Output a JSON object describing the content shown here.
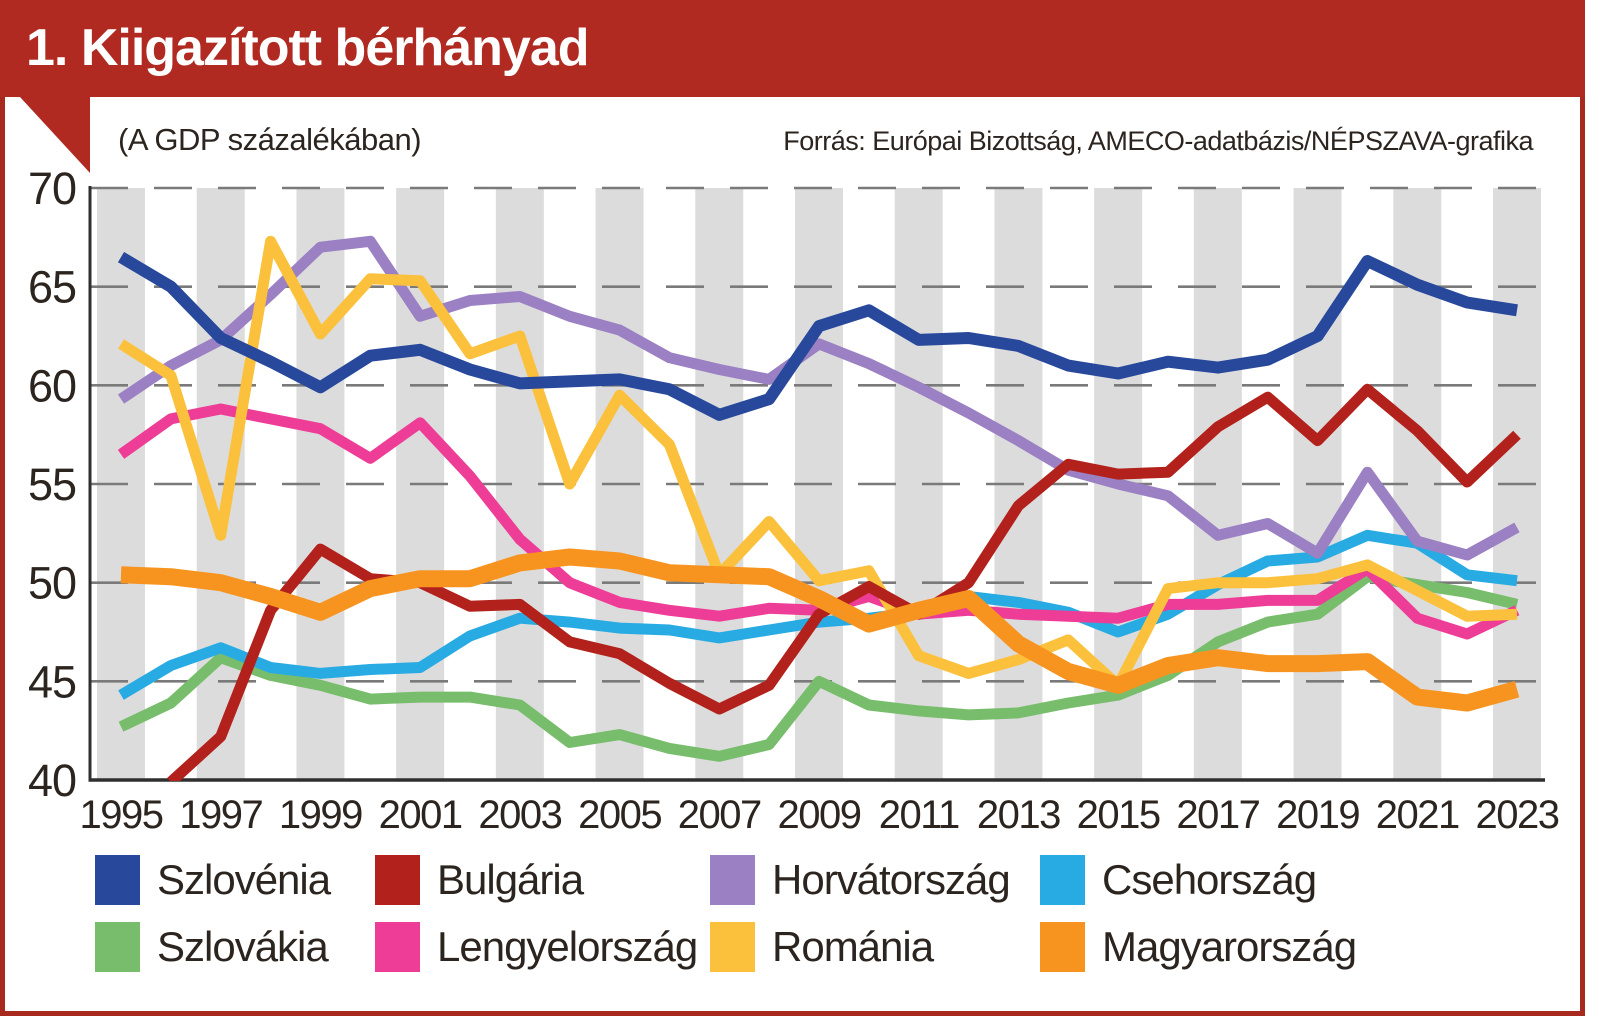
{
  "header": {
    "title": "1. Kiigazított bérhányad",
    "subtitle": "(A GDP százalékában)",
    "source": "Forrás: Európai Bizottság, AMECO-adatbázis/NÉPSZAVA-grafika"
  },
  "colors": {
    "banner": "#b02a21",
    "border": "#a8291d",
    "band": "#dcdcdc",
    "gridline": "#7a7a7a",
    "axis": "#2f2f2f",
    "text": "#2b241f"
  },
  "chart_data": {
    "type": "line",
    "title": "1. Kiigazított bérhányad",
    "subtitle": "(A GDP százalékában)",
    "source": "Forrás: Európai Bizottság, AMECO-adatbázis/NÉPSZAVA-grafika",
    "xlabel": "",
    "ylabel": "",
    "ylim": [
      40,
      70
    ],
    "ytick_step": 5,
    "yticks": [
      70,
      65,
      60,
      55,
      50,
      45,
      40
    ],
    "grid": "horizontal-dashed",
    "background_bands": "gray vertical bands centered on odd years",
    "legend_position": "bottom",
    "x": [
      1995,
      1996,
      1997,
      1998,
      1999,
      2000,
      2001,
      2002,
      2003,
      2004,
      2005,
      2006,
      2007,
      2008,
      2009,
      2010,
      2011,
      2012,
      2013,
      2014,
      2015,
      2016,
      2017,
      2018,
      2019,
      2020,
      2021,
      2022,
      2023
    ],
    "xtick_labels": [
      "1995",
      "1997",
      "1999",
      "2001",
      "2003",
      "2005",
      "2007",
      "2009",
      "2011",
      "2013",
      "2015",
      "2017",
      "2019",
      "2021",
      "2023"
    ],
    "series": [
      {
        "name": "Szlovénia",
        "color": "#28489c",
        "stroke_width": 12,
        "z": 7,
        "values": [
          66.5,
          65.0,
          62.4,
          61.2,
          59.9,
          61.5,
          61.8,
          60.8,
          60.1,
          60.2,
          60.3,
          59.8,
          58.5,
          59.3,
          63.0,
          63.8,
          62.3,
          62.4,
          62.0,
          61.0,
          60.6,
          61.2,
          60.9,
          61.3,
          62.5,
          66.3,
          65.1,
          64.2,
          63.8
        ]
      },
      {
        "name": "Bulgária",
        "color": "#b2211b",
        "stroke_width": 11,
        "z": 6,
        "values": [
          null,
          39.9,
          42.2,
          48.6,
          51.7,
          50.2,
          50.0,
          48.8,
          48.9,
          47.0,
          46.4,
          44.9,
          43.6,
          44.8,
          48.4,
          49.8,
          48.4,
          50.0,
          53.9,
          56.0,
          55.5,
          55.6,
          57.9,
          59.4,
          57.2,
          59.8,
          57.7,
          55.1,
          57.5
        ]
      },
      {
        "name": "Horvátország",
        "color": "#9b80c3",
        "stroke_width": 11,
        "z": 4,
        "values": [
          59.3,
          61.0,
          62.3,
          64.6,
          67.0,
          67.3,
          63.5,
          64.3,
          64.5,
          63.5,
          62.8,
          61.4,
          60.8,
          60.3,
          62.1,
          61.1,
          59.9,
          58.6,
          57.2,
          55.7,
          55.0,
          54.4,
          52.4,
          53.0,
          51.5,
          55.6,
          52.1,
          51.4,
          52.8
        ]
      },
      {
        "name": "Csehország",
        "color": "#28aae2",
        "stroke_width": 11,
        "z": 2,
        "values": [
          44.3,
          45.8,
          46.7,
          45.7,
          45.4,
          45.6,
          45.7,
          47.3,
          48.2,
          48.0,
          47.7,
          47.6,
          47.2,
          47.6,
          48.0,
          48.2,
          48.5,
          49.3,
          49.0,
          48.5,
          47.5,
          48.4,
          49.9,
          51.1,
          51.3,
          52.4,
          52.0,
          50.4,
          50.1
        ]
      },
      {
        "name": "Szlovákia",
        "color": "#78bd6b",
        "stroke_width": 11,
        "z": 1,
        "values": [
          42.7,
          43.9,
          46.2,
          45.3,
          44.8,
          44.1,
          44.2,
          44.2,
          43.8,
          41.9,
          42.3,
          41.6,
          41.2,
          41.8,
          45.0,
          43.8,
          43.5,
          43.3,
          43.4,
          43.9,
          44.3,
          45.3,
          47.0,
          48.0,
          48.4,
          50.3,
          49.9,
          49.5,
          48.9
        ]
      },
      {
        "name": "Lengyelország",
        "color": "#ee3d96",
        "stroke_width": 11,
        "z": 3,
        "values": [
          56.5,
          58.3,
          58.8,
          58.3,
          57.8,
          56.3,
          58.1,
          55.4,
          52.2,
          50.0,
          49.0,
          48.6,
          48.3,
          48.7,
          48.6,
          49.3,
          48.4,
          48.6,
          48.4,
          48.3,
          48.2,
          48.9,
          48.9,
          49.1,
          49.1,
          50.7,
          48.2,
          47.4,
          48.6
        ]
      },
      {
        "name": "Románia",
        "color": "#fcc13c",
        "stroke_width": 11,
        "z": 5,
        "values": [
          62.1,
          60.5,
          52.4,
          67.3,
          62.6,
          65.4,
          65.3,
          61.6,
          62.5,
          55.0,
          59.5,
          57.0,
          50.4,
          53.1,
          50.1,
          50.6,
          46.3,
          45.4,
          46.1,
          47.1,
          44.8,
          49.7,
          50.0,
          50.0,
          50.2,
          50.9,
          49.6,
          48.3,
          48.4
        ]
      },
      {
        "name": "Magyarország",
        "color": "#f7941f",
        "stroke_width": 17,
        "z": 8,
        "values": [
          50.4,
          50.3,
          50.0,
          49.3,
          48.5,
          49.7,
          50.2,
          50.2,
          51.0,
          51.3,
          51.1,
          50.5,
          50.4,
          50.3,
          49.2,
          47.9,
          48.6,
          49.2,
          46.9,
          45.5,
          44.8,
          45.8,
          46.2,
          45.9,
          45.9,
          46.0,
          44.2,
          43.9,
          44.6
        ]
      }
    ],
    "legend": {
      "columns": [
        [
          "Szlovénia",
          "Szlovákia"
        ],
        [
          "Bulgária",
          "Lengyelország"
        ],
        [
          "Horvátország",
          "Románia"
        ],
        [
          "Csehország",
          "Magyarország"
        ]
      ]
    }
  }
}
